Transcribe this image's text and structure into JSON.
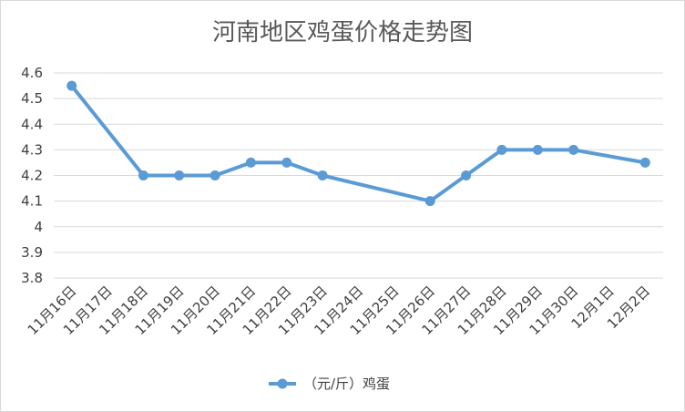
{
  "chart_data": {
    "type": "line",
    "title": "河南地区鸡蛋价格走势图",
    "xlabel": "",
    "ylabel": "",
    "categories": [
      "11月16日",
      "11月17日",
      "11月18日",
      "11月19日",
      "11月20日",
      "11月21日",
      "11月22日",
      "11月23日",
      "11月24日",
      "11月25日",
      "11月26日",
      "11月27日",
      "11月28日",
      "11月29日",
      "11月30日",
      "12月1日",
      "12月2日"
    ],
    "y_ticks": [
      "4.6",
      "4.5",
      "4.4",
      "4.3",
      "4.2",
      "4.1",
      "4",
      "3.9",
      "3.8"
    ],
    "ylim": [
      3.8,
      4.6
    ],
    "grid": true,
    "legend_position": "bottom",
    "series": [
      {
        "name": "（元/斤）鸡蛋",
        "color": "#5b9bd5",
        "values": [
          4.55,
          null,
          4.2,
          4.2,
          4.2,
          4.25,
          4.25,
          4.2,
          null,
          null,
          4.1,
          4.2,
          4.3,
          4.3,
          4.3,
          null,
          4.25
        ]
      }
    ]
  },
  "legend": {
    "label": "（元/斤）鸡蛋",
    "marker_icon": "line-with-dot-marker"
  }
}
